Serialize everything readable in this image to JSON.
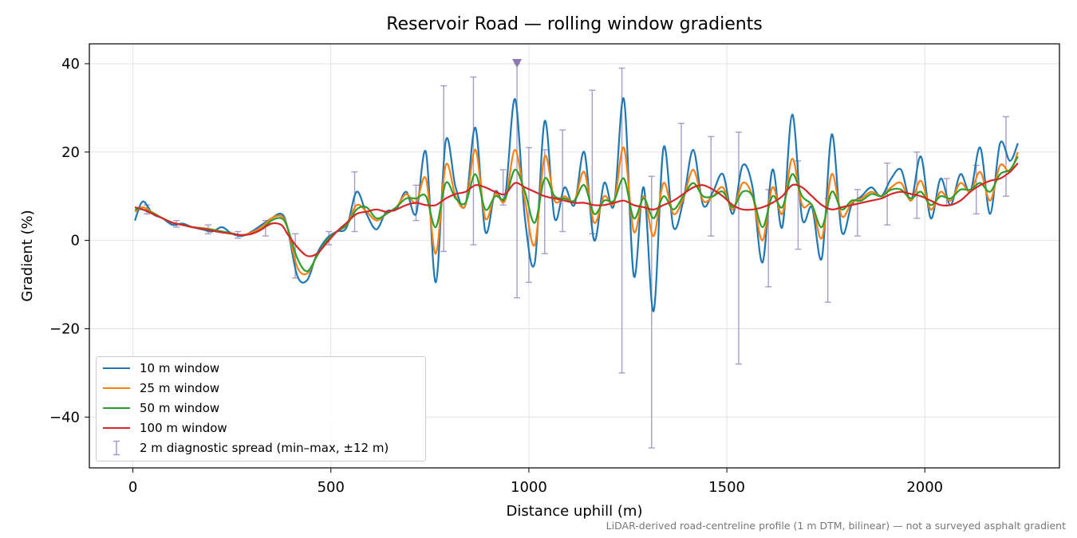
{
  "chart_data": {
    "type": "line",
    "title": "Reservoir Road — rolling window gradients",
    "xlabel": "Distance uphill (m)",
    "ylabel": "Gradient (%)",
    "xlim": [
      -110,
      2340
    ],
    "ylim": [
      -51.5,
      44.5
    ],
    "xticks": [
      0,
      500,
      1000,
      1500,
      2000
    ],
    "yticks": [
      -40,
      -20,
      0,
      20,
      40
    ],
    "xtick_labels": [
      "0",
      "500",
      "1000",
      "1500",
      "2000"
    ],
    "ytick_labels": [
      "−40",
      "−20",
      "0",
      "20",
      "40"
    ],
    "grid": true,
    "legend_position": "lower-left",
    "footnote": "LiDAR-derived road-centreline profile (1 m DTM, bilinear) — not a surveyed asphalt gradient",
    "marker": {
      "x": 970,
      "y": 40,
      "shape": "triangle-down",
      "color": "#8c7ab0"
    },
    "x": [
      5,
      25,
      50,
      75,
      100,
      125,
      150,
      175,
      200,
      225,
      250,
      275,
      300,
      325,
      350,
      375,
      390,
      415,
      440,
      465,
      490,
      515,
      540,
      565,
      590,
      615,
      640,
      665,
      690,
      715,
      740,
      765,
      790,
      815,
      840,
      865,
      890,
      915,
      940,
      965,
      990,
      1015,
      1040,
      1065,
      1090,
      1115,
      1140,
      1165,
      1190,
      1215,
      1240,
      1265,
      1290,
      1315,
      1340,
      1365,
      1390,
      1415,
      1440,
      1465,
      1490,
      1515,
      1540,
      1565,
      1590,
      1615,
      1640,
      1665,
      1690,
      1715,
      1740,
      1765,
      1790,
      1815,
      1840,
      1865,
      1890,
      1915,
      1940,
      1965,
      1990,
      2015,
      2040,
      2065,
      2090,
      2115,
      2140,
      2165,
      2190,
      2215,
      2235
    ],
    "series": [
      {
        "name": "10 m window",
        "color": "#1f77b4",
        "values": [
          4.5,
          8.8,
          6.0,
          5.0,
          3.5,
          3.8,
          3.0,
          2.5,
          2.0,
          3.0,
          1.5,
          1.0,
          2.0,
          3.5,
          5.0,
          6.0,
          3.0,
          -8.0,
          -9.0,
          -3.0,
          0.5,
          2.0,
          3.0,
          11.0,
          6.0,
          2.5,
          6.5,
          7.0,
          11.0,
          6.0,
          20.0,
          -9.5,
          22.5,
          12.0,
          8.0,
          25.5,
          2.0,
          11.0,
          10.0,
          32.0,
          5.0,
          -5.0,
          27.0,
          5.0,
          12.0,
          8.0,
          20.0,
          0.0,
          13.0,
          8.0,
          32.0,
          -8.0,
          12.0,
          -16.0,
          21.0,
          3.0,
          9.0,
          20.5,
          8.0,
          11.0,
          15.0,
          6.0,
          17.0,
          12.0,
          -5.0,
          16.0,
          3.0,
          28.5,
          5.0,
          7.5,
          -4.0,
          24.0,
          2.0,
          8.0,
          10.0,
          12.0,
          10.0,
          14.0,
          16.0,
          9.0,
          19.0,
          5.0,
          14.0,
          8.0,
          15.0,
          11.0,
          21.0,
          6.0,
          22.0,
          18.0,
          22.0
        ]
      },
      {
        "name": "25 m window",
        "color": "#ff7f0e",
        "values": [
          6.5,
          7.5,
          6.3,
          5.0,
          4.0,
          3.5,
          3.0,
          2.8,
          2.5,
          2.0,
          1.5,
          1.2,
          1.8,
          3.0,
          5.0,
          5.5,
          3.0,
          -6.0,
          -7.5,
          -3.5,
          0.0,
          2.0,
          3.5,
          8.0,
          6.5,
          4.5,
          6.0,
          7.5,
          10.5,
          8.5,
          14.0,
          -3.0,
          17.0,
          10.0,
          8.0,
          20.5,
          5.0,
          10.5,
          9.0,
          20.5,
          9.0,
          -1.0,
          19.0,
          9.0,
          10.0,
          9.0,
          15.5,
          4.0,
          10.0,
          8.5,
          21.0,
          2.0,
          10.0,
          1.0,
          13.0,
          6.0,
          9.5,
          16.0,
          9.0,
          10.0,
          12.0,
          7.0,
          13.0,
          10.0,
          0.0,
          12.0,
          6.0,
          18.5,
          8.0,
          8.0,
          0.5,
          15.0,
          5.5,
          8.5,
          9.5,
          11.0,
          10.0,
          12.0,
          13.0,
          9.0,
          13.5,
          7.0,
          11.0,
          9.0,
          13.0,
          11.0,
          15.5,
          9.0,
          17.0,
          15.5,
          20.0
        ]
      },
      {
        "name": "50 m window",
        "color": "#2ca02c",
        "values": [
          7.0,
          7.0,
          6.2,
          5.0,
          4.0,
          3.5,
          3.0,
          2.7,
          2.4,
          2.0,
          1.6,
          1.2,
          1.5,
          2.5,
          4.5,
          5.0,
          3.0,
          -4.0,
          -7.0,
          -3.5,
          0.0,
          2.0,
          3.5,
          7.0,
          7.5,
          5.0,
          6.0,
          7.5,
          9.5,
          9.5,
          10.0,
          3.0,
          13.0,
          9.5,
          8.5,
          15.0,
          7.0,
          10.0,
          9.5,
          16.0,
          11.0,
          4.0,
          14.0,
          10.0,
          9.5,
          9.0,
          12.5,
          6.0,
          9.0,
          9.0,
          14.0,
          5.0,
          9.5,
          5.0,
          10.0,
          7.0,
          10.0,
          13.0,
          10.0,
          10.0,
          11.0,
          7.5,
          11.0,
          10.0,
          3.0,
          10.0,
          7.5,
          15.0,
          10.0,
          8.0,
          3.0,
          11.0,
          7.0,
          9.0,
          9.0,
          10.5,
          10.0,
          11.5,
          11.5,
          9.5,
          11.0,
          8.0,
          10.0,
          9.5,
          11.5,
          11.5,
          13.0,
          11.0,
          15.0,
          16.0,
          19.0
        ]
      },
      {
        "name": "100 m window",
        "color": "#d62728",
        "values": [
          7.5,
          7.0,
          6.0,
          5.0,
          4.0,
          3.5,
          3.0,
          2.6,
          2.2,
          1.8,
          1.5,
          1.2,
          1.5,
          2.5,
          3.8,
          3.5,
          1.5,
          -1.5,
          -3.5,
          -3.0,
          -0.5,
          2.0,
          4.0,
          6.0,
          6.5,
          7.0,
          6.5,
          7.0,
          8.0,
          8.5,
          8.0,
          8.0,
          9.5,
          10.5,
          11.0,
          12.5,
          12.0,
          11.0,
          10.5,
          13.0,
          12.0,
          11.0,
          10.0,
          9.5,
          9.0,
          8.5,
          8.5,
          8.0,
          8.0,
          8.5,
          9.0,
          8.0,
          7.5,
          7.0,
          8.0,
          9.0,
          10.5,
          12.0,
          12.5,
          11.5,
          10.0,
          8.0,
          7.0,
          7.0,
          7.5,
          8.5,
          10.0,
          12.5,
          12.0,
          10.0,
          8.0,
          7.0,
          7.5,
          8.0,
          8.5,
          9.0,
          9.5,
          10.5,
          11.0,
          10.5,
          10.0,
          9.0,
          8.0,
          8.0,
          9.0,
          11.0,
          12.5,
          13.5,
          14.0,
          15.5,
          17.5
        ]
      }
    ],
    "error_bars": {
      "name": "2 m diagnostic spread (min–max, ±12 m)",
      "color": "#a89cc8",
      "x": [
        35,
        110,
        190,
        265,
        335,
        410,
        495,
        560,
        715,
        785,
        860,
        935,
        970,
        1000,
        1040,
        1085,
        1160,
        1235,
        1310,
        1385,
        1460,
        1530,
        1605,
        1680,
        1755,
        1830,
        1905,
        1980,
        2055,
        2130,
        2205
      ],
      "low": [
        6.0,
        3.0,
        1.5,
        0.5,
        1.0,
        -8.5,
        -1.0,
        2.0,
        4.5,
        -2.5,
        -1.0,
        8.0,
        -13.0,
        -9.5,
        -3.0,
        2.0,
        1.5,
        -30.0,
        -47.0,
        8.5,
        1.0,
        -28.0,
        -10.5,
        -2.0,
        -14.0,
        1.0,
        3.5,
        5.0,
        8.0,
        6.0,
        10.0
      ],
      "high": [
        8.0,
        4.5,
        3.5,
        2.0,
        4.5,
        1.5,
        2.0,
        15.5,
        12.5,
        35.0,
        37.0,
        16.0,
        40.0,
        21.0,
        20.5,
        25.0,
        34.0,
        39.0,
        14.5,
        26.5,
        23.5,
        24.5,
        11.5,
        18.0,
        9.5,
        11.5,
        17.5,
        20.0,
        14.0,
        17.0,
        28.0
      ]
    }
  }
}
